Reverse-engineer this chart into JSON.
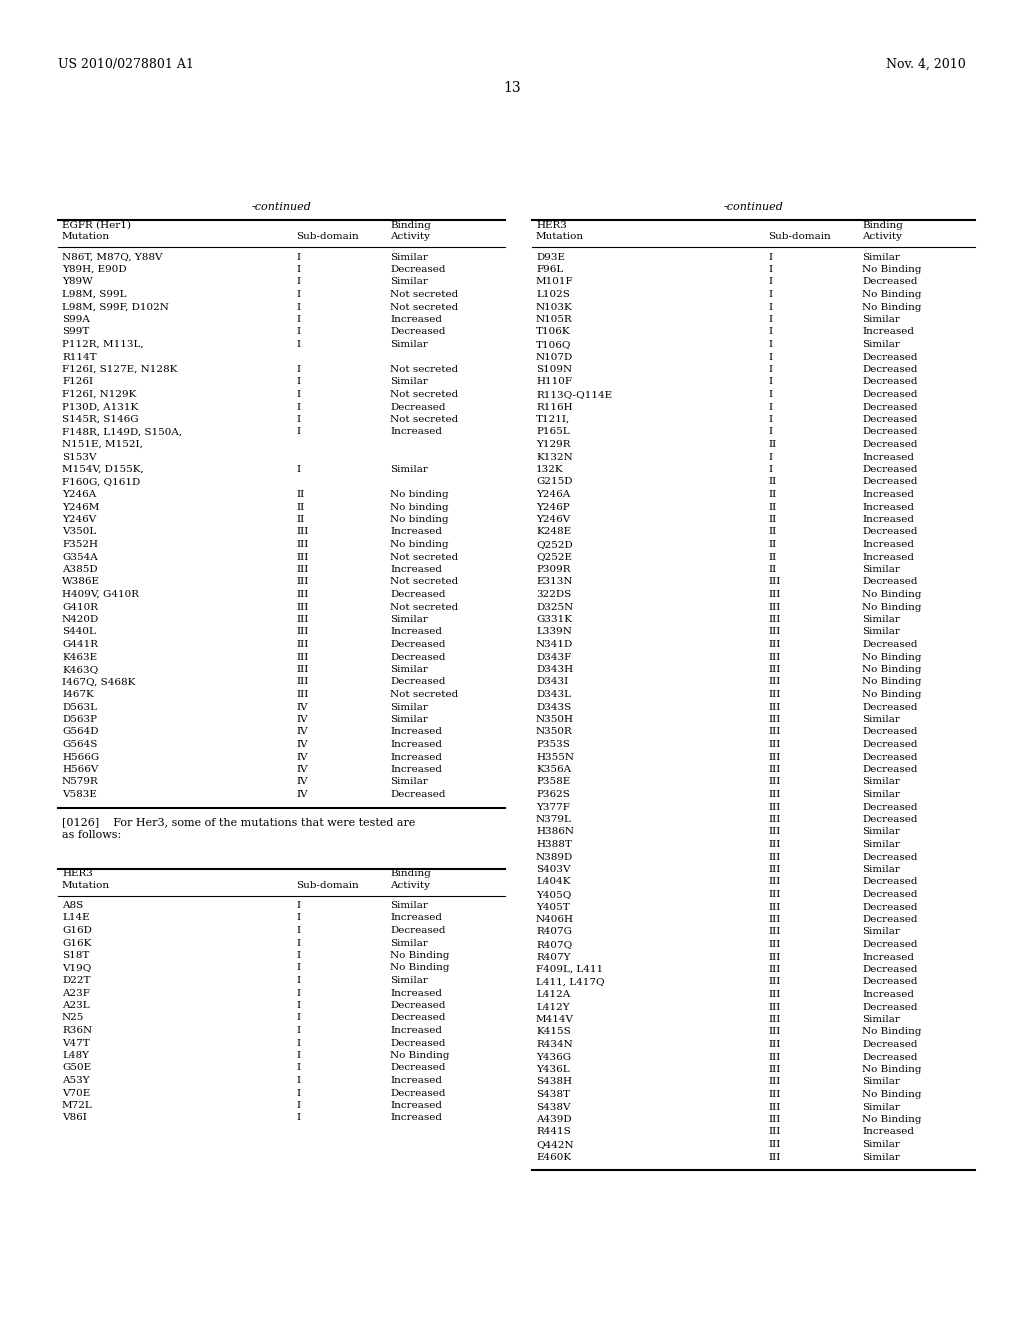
{
  "header_left": "US 2010/0278801 A1",
  "header_right": "Nov. 4, 2010",
  "page_number": "13",
  "continued_left": "-continued",
  "continued_right": "-continued",
  "table1_title_line1": "EGFR (Her1)",
  "table1_title_line2": "Mutation",
  "table1_col2": "Sub-domain",
  "table1_col3_line1": "Binding",
  "table1_col3_line2": "Activity",
  "table1_data": [
    [
      "N86T, M87Q, Y88V",
      "I",
      "Similar"
    ],
    [
      "Y89H, E90D",
      "I",
      "Decreased"
    ],
    [
      "Y89W",
      "I",
      "Similar"
    ],
    [
      "L98M, S99L",
      "I",
      "Not secreted"
    ],
    [
      "L98M, S99F, D102N",
      "I",
      "Not secreted"
    ],
    [
      "S99A",
      "I",
      "Increased"
    ],
    [
      "S99T",
      "I",
      "Decreased"
    ],
    [
      "P112R, M113L,|R114T",
      "I",
      "Similar"
    ],
    [
      "F126I, S127E, N128K",
      "I",
      "Not secreted"
    ],
    [
      "F126I",
      "I",
      "Similar"
    ],
    [
      "F126I, N129K",
      "I",
      "Not secreted"
    ],
    [
      "P130D, A131K",
      "I",
      "Decreased"
    ],
    [
      "S145R, S146G",
      "I",
      "Not secreted"
    ],
    [
      "F148R, L149D, S150A,|N151E, M152I,|S153V",
      "I",
      "Increased"
    ],
    [
      "M154V, D155K,|F160G, Q161D",
      "I",
      "Similar"
    ],
    [
      "Y246A",
      "II",
      "No binding"
    ],
    [
      "Y246M",
      "II",
      "No binding"
    ],
    [
      "Y246V",
      "II",
      "No binding"
    ],
    [
      "V350L",
      "III",
      "Increased"
    ],
    [
      "F352H",
      "III",
      "No binding"
    ],
    [
      "G354A",
      "III",
      "Not secreted"
    ],
    [
      "A385D",
      "III",
      "Increased"
    ],
    [
      "W386E",
      "III",
      "Not secreted"
    ],
    [
      "H409V, G410R",
      "III",
      "Decreased"
    ],
    [
      "G410R",
      "III",
      "Not secreted"
    ],
    [
      "N420D",
      "III",
      "Similar"
    ],
    [
      "S440L",
      "III",
      "Increased"
    ],
    [
      "G441R",
      "III",
      "Decreased"
    ],
    [
      "K463E",
      "III",
      "Decreased"
    ],
    [
      "K463Q",
      "III",
      "Similar"
    ],
    [
      "I467Q, S468K",
      "III",
      "Decreased"
    ],
    [
      "I467K",
      "III",
      "Not secreted"
    ],
    [
      "D563L",
      "IV",
      "Similar"
    ],
    [
      "D563P",
      "IV",
      "Similar"
    ],
    [
      "G564D",
      "IV",
      "Increased"
    ],
    [
      "G564S",
      "IV",
      "Increased"
    ],
    [
      "H566G",
      "IV",
      "Increased"
    ],
    [
      "H566V",
      "IV",
      "Increased"
    ],
    [
      "N579R",
      "IV",
      "Similar"
    ],
    [
      "V583E",
      "IV",
      "Decreased"
    ]
  ],
  "paragraph_line1": "[0126]    For Her3, some of the mutations that were tested are",
  "paragraph_line2": "as follows:",
  "table2_title_line1": "HER3",
  "table2_title_line2": "Mutation",
  "table2_col2": "Sub-domain",
  "table2_col3_line1": "Binding",
  "table2_col3_line2": "Activity",
  "table2_data": [
    [
      "A8S",
      "I",
      "Similar"
    ],
    [
      "L14E",
      "I",
      "Increased"
    ],
    [
      "G16D",
      "I",
      "Decreased"
    ],
    [
      "G16K",
      "I",
      "Similar"
    ],
    [
      "S18T",
      "I",
      "No Binding"
    ],
    [
      "V19Q",
      "I",
      "No Binding"
    ],
    [
      "D22T",
      "I",
      "Similar"
    ],
    [
      "A23F",
      "I",
      "Increased"
    ],
    [
      "A23L",
      "I",
      "Decreased"
    ],
    [
      "N25",
      "I",
      "Decreased"
    ],
    [
      "R36N",
      "I",
      "Increased"
    ],
    [
      "V47T",
      "I",
      "Decreased"
    ],
    [
      "L48Y",
      "I",
      "No Binding"
    ],
    [
      "G50E",
      "I",
      "Decreased"
    ],
    [
      "A53Y",
      "I",
      "Increased"
    ],
    [
      "V70E",
      "I",
      "Decreased"
    ],
    [
      "M72L",
      "I",
      "Increased"
    ],
    [
      "V86I",
      "I",
      "Increased"
    ]
  ],
  "table3_title_line1": "HER3",
  "table3_title_line2": "Mutation",
  "table3_col2": "Sub-domain",
  "table3_col3_line1": "Binding",
  "table3_col3_line2": "Activity",
  "table3_data": [
    [
      "D93E",
      "I",
      "Similar"
    ],
    [
      "F96L",
      "I",
      "No Binding"
    ],
    [
      "M101F",
      "I",
      "Decreased"
    ],
    [
      "L102S",
      "I",
      "No Binding"
    ],
    [
      "N103K",
      "I",
      "No Binding"
    ],
    [
      "N105R",
      "I",
      "Similar"
    ],
    [
      "T106K",
      "I",
      "Increased"
    ],
    [
      "T106Q",
      "I",
      "Similar"
    ],
    [
      "N107D",
      "I",
      "Decreased"
    ],
    [
      "S109N",
      "I",
      "Decreased"
    ],
    [
      "H110F",
      "I",
      "Decreased"
    ],
    [
      "R113Q-Q114E",
      "I",
      "Decreased"
    ],
    [
      "R116H",
      "I",
      "Decreased"
    ],
    [
      "T121I,",
      "I",
      "Decreased"
    ],
    [
      "P165L",
      "I",
      "Decreased"
    ],
    [
      "Y129R",
      "II",
      "Decreased"
    ],
    [
      "K132N",
      "I",
      "Increased"
    ],
    [
      "132K",
      "I",
      "Decreased"
    ],
    [
      "G215D",
      "II",
      "Decreased"
    ],
    [
      "Y246A",
      "II",
      "Increased"
    ],
    [
      "Y246P",
      "II",
      "Increased"
    ],
    [
      "Y246V",
      "II",
      "Increased"
    ],
    [
      "K248E",
      "II",
      "Decreased"
    ],
    [
      "Q252D",
      "II",
      "Increased"
    ],
    [
      "Q252E",
      "II",
      "Increased"
    ],
    [
      "P309R",
      "II",
      "Similar"
    ],
    [
      "E313N",
      "III",
      "Decreased"
    ],
    [
      "322DS",
      "III",
      "No Binding"
    ],
    [
      "D325N",
      "III",
      "No Binding"
    ],
    [
      "G331K",
      "III",
      "Similar"
    ],
    [
      "L339N",
      "III",
      "Similar"
    ],
    [
      "N341D",
      "III",
      "Decreased"
    ],
    [
      "D343F",
      "III",
      "No Binding"
    ],
    [
      "D343H",
      "III",
      "No Binding"
    ],
    [
      "D343I",
      "III",
      "No Binding"
    ],
    [
      "D343L",
      "III",
      "No Binding"
    ],
    [
      "D343S",
      "III",
      "Decreased"
    ],
    [
      "N350H",
      "III",
      "Similar"
    ],
    [
      "N350R",
      "III",
      "Decreased"
    ],
    [
      "P353S",
      "III",
      "Decreased"
    ],
    [
      "H355N",
      "III",
      "Decreased"
    ],
    [
      "K356A",
      "III",
      "Decreased"
    ],
    [
      "P358E",
      "III",
      "Similar"
    ],
    [
      "P362S",
      "III",
      "Similar"
    ],
    [
      "Y377F",
      "III",
      "Decreased"
    ],
    [
      "N379L",
      "III",
      "Decreased"
    ],
    [
      "H386N",
      "III",
      "Similar"
    ],
    [
      "H388T",
      "III",
      "Similar"
    ],
    [
      "N389D",
      "III",
      "Decreased"
    ],
    [
      "S403V",
      "III",
      "Similar"
    ],
    [
      "L404K",
      "III",
      "Decreased"
    ],
    [
      "Y405Q",
      "III",
      "Decreased"
    ],
    [
      "Y405T",
      "III",
      "Decreased"
    ],
    [
      "N406H",
      "III",
      "Decreased"
    ],
    [
      "R407G",
      "III",
      "Similar"
    ],
    [
      "R407Q",
      "III",
      "Decreased"
    ],
    [
      "R407Y",
      "III",
      "Increased"
    ],
    [
      "F409L, L411",
      "III",
      "Decreased"
    ],
    [
      "L411, L417Q",
      "III",
      "Decreased"
    ],
    [
      "L412A",
      "III",
      "Increased"
    ],
    [
      "L412Y",
      "III",
      "Decreased"
    ],
    [
      "M414V",
      "III",
      "Similar"
    ],
    [
      "K415S",
      "III",
      "No Binding"
    ],
    [
      "R434N",
      "III",
      "Decreased"
    ],
    [
      "Y436G",
      "III",
      "Decreased"
    ],
    [
      "Y436L",
      "III",
      "No Binding"
    ],
    [
      "S438H",
      "III",
      "Similar"
    ],
    [
      "S438T",
      "III",
      "No Binding"
    ],
    [
      "S438V",
      "III",
      "Similar"
    ],
    [
      "A439D",
      "III",
      "No Binding"
    ],
    [
      "R441S",
      "III",
      "Increased"
    ],
    [
      "Q442N",
      "III",
      "Similar"
    ],
    [
      "E460K",
      "III",
      "Similar"
    ]
  ],
  "bg_color": "#ffffff",
  "text_color": "#000000"
}
